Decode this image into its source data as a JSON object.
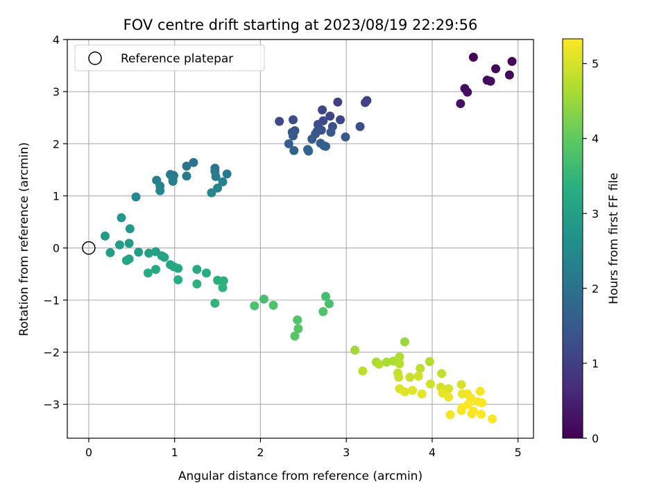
{
  "chart_data": {
    "type": "scatter",
    "title": "FOV centre drift starting at 2023/08/19 22:29:56",
    "xlabel": "Angular distance from reference (arcmin)",
    "ylabel": "Rotation from reference (arcmin)",
    "xlim": [
      -0.25,
      5.18
    ],
    "ylim": [
      -3.65,
      4.0
    ],
    "xticks": [
      0,
      1,
      2,
      3,
      4,
      5
    ],
    "yticks": [
      -3,
      -2,
      -1,
      0,
      1,
      2,
      3,
      4
    ],
    "grid": true,
    "colormap": "viridis",
    "colorbar": {
      "label": "Hours from first FF file",
      "min": 0,
      "max": 5.33,
      "ticks": [
        0,
        1,
        2,
        3,
        4,
        5
      ]
    },
    "legend": {
      "position": "top-left",
      "entries": [
        {
          "label": "Reference platepar",
          "marker": "hollow-circle"
        }
      ]
    },
    "reference": {
      "x": 0,
      "y": 0
    },
    "points": [
      [
        4.48,
        3.66,
        0.05
      ],
      [
        4.93,
        3.58,
        0.08
      ],
      [
        4.74,
        3.44,
        0.1
      ],
      [
        4.9,
        3.32,
        0.12
      ],
      [
        4.64,
        3.22,
        0.15
      ],
      [
        4.68,
        3.2,
        0.18
      ],
      [
        4.38,
        3.06,
        0.2
      ],
      [
        4.41,
        2.99,
        0.23
      ],
      [
        4.33,
        2.77,
        0.26
      ],
      [
        2.9,
        2.8,
        1.0
      ],
      [
        3.24,
        2.83,
        1.05
      ],
      [
        3.22,
        2.79,
        1.08
      ],
      [
        2.72,
        2.65,
        1.1
      ],
      [
        2.81,
        2.53,
        1.12
      ],
      [
        2.93,
        2.46,
        1.15
      ],
      [
        2.22,
        2.43,
        1.18
      ],
      [
        2.38,
        2.46,
        1.2
      ],
      [
        2.73,
        2.44,
        1.22
      ],
      [
        2.67,
        2.37,
        1.25
      ],
      [
        3.16,
        2.33,
        1.28
      ],
      [
        2.84,
        2.33,
        1.3
      ],
      [
        2.4,
        2.25,
        1.32
      ],
      [
        2.66,
        2.24,
        1.35
      ],
      [
        2.71,
        2.26,
        1.38
      ],
      [
        2.82,
        2.22,
        1.4
      ],
      [
        2.37,
        2.22,
        1.42
      ],
      [
        2.64,
        2.19,
        1.45
      ],
      [
        2.38,
        2.15,
        1.48
      ],
      [
        2.99,
        2.13,
        1.5
      ],
      [
        2.6,
        2.09,
        1.52
      ],
      [
        2.7,
        2.01,
        1.55
      ],
      [
        2.33,
        2.0,
        1.58
      ],
      [
        2.74,
        1.96,
        1.6
      ],
      [
        2.76,
        1.95,
        1.62
      ],
      [
        2.55,
        1.89,
        1.65
      ],
      [
        2.39,
        1.87,
        1.68
      ],
      [
        2.56,
        1.86,
        1.7
      ],
      [
        1.22,
        1.64,
        2.0
      ],
      [
        1.14,
        1.57,
        2.05
      ],
      [
        1.47,
        1.53,
        2.08
      ],
      [
        1.47,
        1.47,
        2.1
      ],
      [
        1.61,
        1.42,
        2.12
      ],
      [
        0.95,
        1.41,
        2.15
      ],
      [
        0.99,
        1.39,
        2.18
      ],
      [
        1.48,
        1.37,
        2.2
      ],
      [
        1.14,
        1.38,
        2.22
      ],
      [
        0.98,
        1.31,
        2.25
      ],
      [
        0.79,
        1.3,
        2.28
      ],
      [
        1.56,
        1.27,
        2.3
      ],
      [
        0.98,
        1.28,
        2.32
      ],
      [
        0.83,
        1.19,
        2.35
      ],
      [
        1.5,
        1.15,
        2.38
      ],
      [
        0.83,
        1.1,
        2.4
      ],
      [
        1.43,
        1.06,
        2.42
      ],
      [
        0.55,
        0.98,
        2.45
      ],
      [
        0.38,
        0.58,
        2.8
      ],
      [
        0.48,
        0.37,
        2.85
      ],
      [
        0.19,
        0.23,
        2.88
      ],
      [
        0.47,
        0.09,
        2.9
      ],
      [
        0.36,
        0.06,
        2.92
      ],
      [
        0.58,
        -0.08,
        2.95
      ],
      [
        0.25,
        -0.09,
        2.98
      ],
      [
        0.78,
        -0.07,
        3.0
      ],
      [
        0.7,
        -0.1,
        3.02
      ],
      [
        0.85,
        -0.15,
        3.05
      ],
      [
        0.47,
        -0.21,
        3.08
      ],
      [
        0.88,
        -0.18,
        3.1
      ],
      [
        0.44,
        -0.24,
        3.12
      ],
      [
        0.95,
        -0.32,
        3.15
      ],
      [
        0.99,
        -0.36,
        3.18
      ],
      [
        1.04,
        -0.39,
        3.2
      ],
      [
        0.78,
        -0.41,
        3.22
      ],
      [
        1.26,
        -0.41,
        3.25
      ],
      [
        0.69,
        -0.48,
        3.28
      ],
      [
        1.37,
        -0.48,
        3.3
      ],
      [
        1.04,
        -0.61,
        3.32
      ],
      [
        1.5,
        -0.62,
        3.35
      ],
      [
        1.57,
        -0.63,
        3.38
      ],
      [
        1.26,
        -0.69,
        3.4
      ],
      [
        1.56,
        -0.76,
        3.42
      ],
      [
        2.76,
        -0.93,
        3.7
      ],
      [
        2.04,
        -0.98,
        3.72
      ],
      [
        1.47,
        -1.06,
        3.45
      ],
      [
        2.8,
        -1.07,
        3.75
      ],
      [
        1.93,
        -1.11,
        3.78
      ],
      [
        2.15,
        -1.1,
        3.8
      ],
      [
        2.73,
        -1.22,
        3.82
      ],
      [
        2.43,
        -1.38,
        3.85
      ],
      [
        2.44,
        -1.55,
        3.88
      ],
      [
        2.4,
        -1.69,
        3.9
      ],
      [
        3.68,
        -1.8,
        4.5
      ],
      [
        3.1,
        -1.96,
        4.55
      ],
      [
        3.35,
        -2.19,
        4.6
      ],
      [
        3.47,
        -2.19,
        4.62
      ],
      [
        3.55,
        -2.17,
        4.65
      ],
      [
        3.62,
        -2.09,
        4.68
      ],
      [
        3.97,
        -2.18,
        4.7
      ],
      [
        3.38,
        -2.23,
        4.72
      ],
      [
        3.62,
        -2.22,
        4.75
      ],
      [
        3.19,
        -2.36,
        4.78
      ],
      [
        3.86,
        -2.31,
        4.8
      ],
      [
        3.6,
        -2.4,
        4.82
      ],
      [
        4.11,
        -2.41,
        4.85
      ],
      [
        3.61,
        -2.48,
        4.88
      ],
      [
        3.74,
        -2.48,
        4.9
      ],
      [
        3.84,
        -2.46,
        4.92
      ],
      [
        3.98,
        -2.61,
        4.95
      ],
      [
        4.1,
        -2.67,
        4.98
      ],
      [
        4.19,
        -2.7,
        5.0
      ],
      [
        4.34,
        -2.62,
        5.02
      ],
      [
        3.62,
        -2.7,
        5.05
      ],
      [
        3.77,
        -2.73,
        5.08
      ],
      [
        3.68,
        -2.76,
        5.1
      ],
      [
        3.88,
        -2.8,
        5.12
      ],
      [
        4.12,
        -2.78,
        5.15
      ],
      [
        4.19,
        -2.86,
        5.18
      ],
      [
        4.35,
        -2.8,
        5.2
      ],
      [
        4.41,
        -2.8,
        5.22
      ],
      [
        4.56,
        -2.75,
        5.25
      ],
      [
        4.45,
        -2.88,
        5.28
      ],
      [
        4.53,
        -2.95,
        5.3
      ],
      [
        4.58,
        -2.97,
        5.3
      ],
      [
        4.42,
        -3.0,
        5.32
      ],
      [
        4.35,
        -3.06,
        5.32
      ],
      [
        4.34,
        -3.12,
        5.3
      ],
      [
        4.48,
        -3.13,
        5.28
      ],
      [
        4.46,
        -3.18,
        5.3
      ],
      [
        4.57,
        -3.19,
        5.32
      ],
      [
        4.21,
        -3.2,
        5.25
      ],
      [
        4.7,
        -3.28,
        5.33
      ]
    ]
  }
}
